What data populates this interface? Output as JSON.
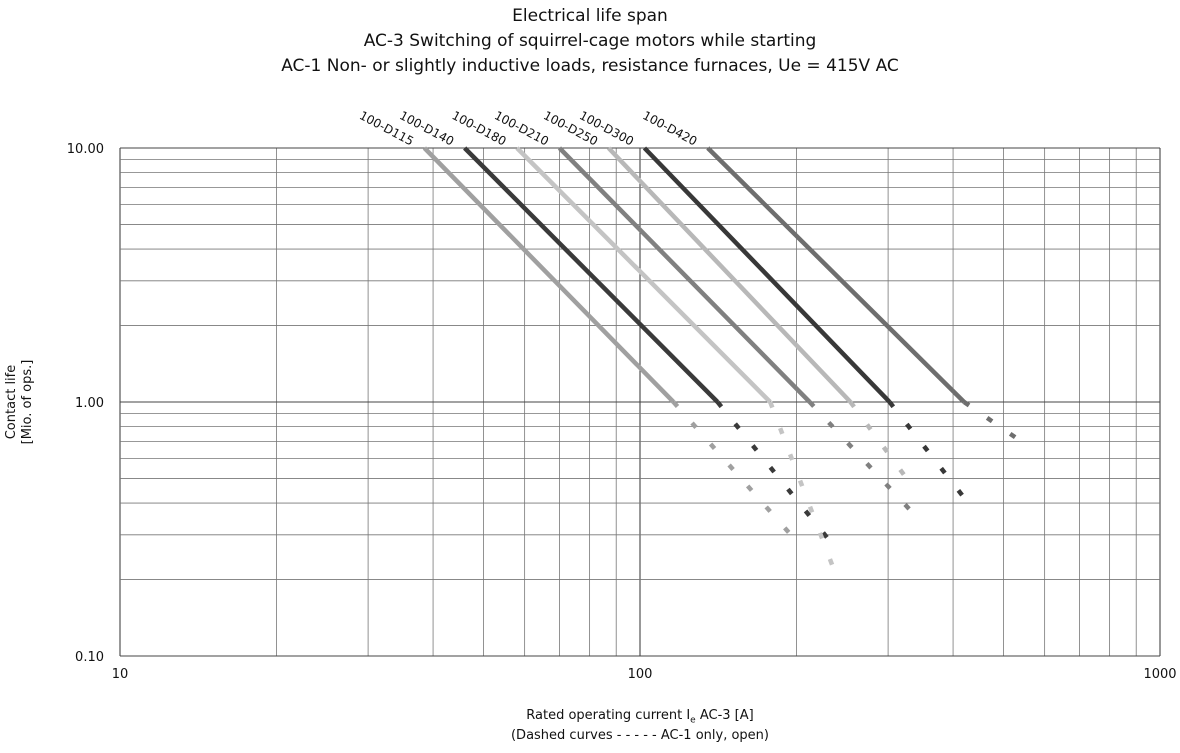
{
  "chart_data": {
    "type": "line",
    "title": "Electrical life span",
    "subtitle_lines": [
      "AC-3 Switching of squirrel-cage motors while starting",
      "AC-1 Non- or slightly inductive loads, resistance furnaces, Ue = 415V AC"
    ],
    "xlabel_prefix": "Rated operating current  I",
    "xlabel_sub": "e",
    "xlabel_suffix": " AC-3  [A]",
    "xlabel_note": "(Dashed curves - - - - - AC-1 only, open)",
    "ylabel_lines": [
      "Contact life",
      "[Mio. of ops.]"
    ],
    "xscale": "log",
    "yscale": "log",
    "xlim": [
      10,
      1000
    ],
    "ylim": [
      0.1,
      10
    ],
    "xticks": [
      "10",
      "100",
      "1000"
    ],
    "yticks": [
      "0.10",
      "1.00",
      "10.00"
    ],
    "grid": true,
    "series": [
      {
        "name": "100-D115",
        "color": "#a0a0a0",
        "solid": [
          [
            38.5,
            10
          ],
          [
            116,
            1
          ]
        ],
        "dashed": [
          [
            116,
            1
          ],
          [
            195,
            0.3
          ]
        ]
      },
      {
        "name": "100-D140",
        "color": "#3a3a3a",
        "solid": [
          [
            46,
            10
          ],
          [
            141,
            1
          ]
        ],
        "dashed": [
          [
            141,
            1
          ],
          [
            233,
            0.28
          ]
        ]
      },
      {
        "name": "100-D180",
        "color": "#c4c4c4",
        "solid": [
          [
            58,
            10
          ],
          [
            178,
            1
          ]
        ],
        "dashed": [
          [
            178,
            1
          ],
          [
            240,
            0.2
          ]
        ]
      },
      {
        "name": "100-D210",
        "color": "#808080",
        "solid": [
          [
            70,
            10
          ],
          [
            212,
            1
          ]
        ],
        "dashed": [
          [
            212,
            1
          ],
          [
            333,
            0.37
          ]
        ]
      },
      {
        "name": "100-D250",
        "color": "#b8b8b8",
        "solid": [
          [
            87,
            10
          ],
          [
            254,
            1
          ]
        ],
        "dashed": [
          [
            254,
            1
          ],
          [
            333,
            0.47
          ]
        ]
      },
      {
        "name": "100-D300",
        "color": "#383838",
        "solid": [
          [
            102,
            10
          ],
          [
            302,
            1
          ]
        ],
        "dashed": [
          [
            302,
            1
          ],
          [
            420,
            0.42
          ]
        ]
      },
      {
        "name": "100-D420",
        "color": "#6e6e6e",
        "solid": [
          [
            135,
            10
          ],
          [
            420,
            1
          ]
        ],
        "dashed": [
          [
            420,
            1
          ],
          [
            530,
            0.72
          ]
        ]
      }
    ]
  }
}
